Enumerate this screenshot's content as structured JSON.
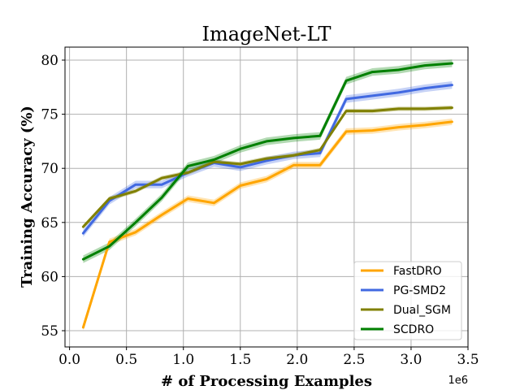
{
  "chart_data": {
    "type": "line",
    "title": "ImageNet-LT",
    "xlabel": "# of Processing Examples",
    "ylabel": "Training Accuracy (%)",
    "x_scale_label": "1e6",
    "xlim": [
      -0.04,
      3.5
    ],
    "ylim": [
      53.5,
      81.2
    ],
    "xticks": [
      0.0,
      0.5,
      1.0,
      1.5,
      2.0,
      2.5,
      3.0,
      3.5
    ],
    "xtick_labels": [
      "0.0",
      "0.5",
      "1.0",
      "1.5",
      "2.0",
      "2.5",
      "3.0",
      "3.5"
    ],
    "yticks": [
      55,
      60,
      65,
      70,
      75,
      80
    ],
    "ytick_labels": [
      "55",
      "60",
      "65",
      "70",
      "75",
      "80"
    ],
    "grid": true,
    "legend_position": "bottom-right",
    "x": [
      0.12,
      0.35,
      0.58,
      0.81,
      1.04,
      1.27,
      1.5,
      1.73,
      1.97,
      2.2,
      2.43,
      2.66,
      2.89,
      3.12,
      3.36
    ],
    "series": [
      {
        "name": "FastDRO",
        "color": "#ffa500",
        "values": [
          55.3,
          63.2,
          64.1,
          65.7,
          67.2,
          66.8,
          68.4,
          69.0,
          70.3,
          70.3,
          73.4,
          73.5,
          73.8,
          74.0,
          74.3
        ],
        "band": 0.3
      },
      {
        "name": "PG-SMD2",
        "color": "#4169e1",
        "values": [
          64.0,
          67.0,
          68.5,
          68.5,
          69.6,
          70.5,
          70.1,
          70.7,
          71.2,
          71.4,
          76.4,
          76.7,
          77.0,
          77.4,
          77.7
        ],
        "band": 0.35
      },
      {
        "name": "Dual_SGM",
        "color": "#808000",
        "values": [
          64.6,
          67.2,
          67.9,
          69.1,
          69.6,
          70.6,
          70.4,
          70.9,
          71.2,
          71.7,
          75.3,
          75.3,
          75.5,
          75.5,
          75.6
        ],
        "band": 0.2
      },
      {
        "name": "SCDRO",
        "color": "#008000",
        "values": [
          61.6,
          62.8,
          65.0,
          67.3,
          70.2,
          70.8,
          71.8,
          72.5,
          72.8,
          73.0,
          78.1,
          78.9,
          79.1,
          79.5,
          79.7
        ],
        "band": 0.35
      }
    ]
  }
}
